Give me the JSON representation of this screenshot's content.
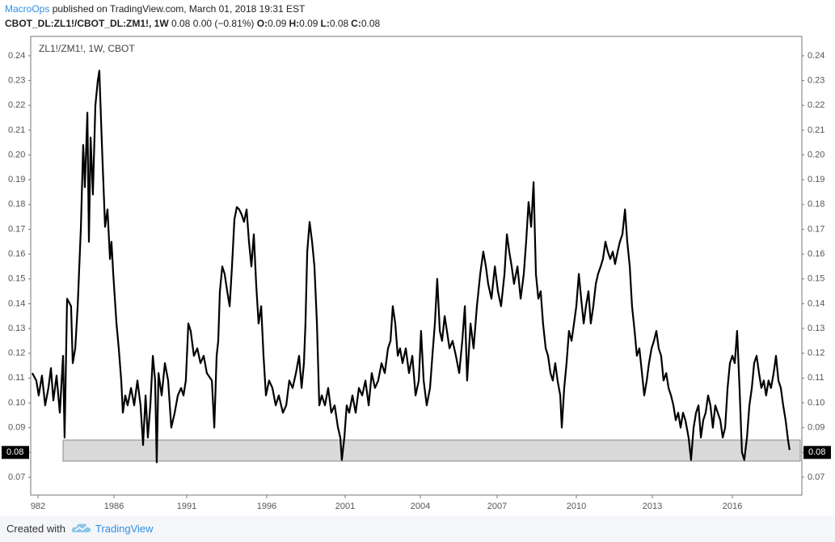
{
  "header": {
    "author": "MacroOps",
    "published": "published on TradingView.com, March 01, 2018 19:31 EST",
    "symbol": "CBOT_DL:ZL1!/CBOT_DL:ZM1!, 1W",
    "change": "0.08 0.00 (−0.81%)",
    "ohlc": [
      {
        "label": "O:",
        "value": 0.09
      },
      {
        "label": "H:",
        "value": 0.09
      },
      {
        "label": "L:",
        "value": 0.08
      },
      {
        "label": "C:",
        "value": 0.08
      }
    ]
  },
  "footer": {
    "created": "Created with",
    "brand": "TradingView"
  },
  "chart_data": {
    "type": "line",
    "legend_text": "ZL1!/ZM1!, 1W, CBOT",
    "grid": false,
    "price_label": 0.08,
    "zone": {
      "x": [
        1983.32,
        2018.55
      ],
      "y": [
        0.0765,
        0.085
      ],
      "color": "#d9d9d9"
    },
    "xlim": [
      1981.62,
      2018.61
    ],
    "xticks": [
      {
        "value": 1982,
        "label": "982"
      },
      1986,
      1991,
      1996,
      2001,
      2004,
      2007,
      2010,
      2013,
      2016
    ],
    "ylim": [
      0.0628,
      0.2478
    ],
    "yticks": [
      0.07,
      0.08,
      0.09,
      {
        "value": 0.1,
        "label": "0.10"
      },
      0.11,
      0.12,
      0.13,
      0.14,
      0.15,
      0.16,
      0.17,
      0.18,
      0.19,
      {
        "value": 0.2,
        "label": "0.20"
      },
      0.21,
      0.22,
      0.23,
      0.24
    ],
    "x": [
      1981.7,
      1981.91,
      1982.04,
      1982.21,
      1982.38,
      1982.55,
      1982.68,
      1982.81,
      1982.98,
      1983.15,
      1983.32,
      1983.4,
      1983.53,
      1983.74,
      1983.83,
      1983.96,
      1984.09,
      1984.26,
      1984.38,
      1984.47,
      1984.6,
      1984.68,
      1984.77,
      1984.89,
      1985.02,
      1985.15,
      1985.23,
      1985.32,
      1985.4,
      1985.53,
      1985.66,
      1985.79,
      1985.87,
      1985.96,
      1986.06,
      1986.17,
      1986.33,
      1986.5,
      1986.61,
      1986.78,
      1986.94,
      1987.17,
      1987.39,
      1987.61,
      1987.83,
      1988.0,
      1988.17,
      1988.33,
      1988.5,
      1988.67,
      1988.83,
      1988.94,
      1989.06,
      1989.28,
      1989.5,
      1989.72,
      1989.94,
      1990.17,
      1990.39,
      1990.61,
      1990.78,
      1990.94,
      1991.1,
      1991.25,
      1991.45,
      1991.66,
      1991.86,
      1992.06,
      1992.26,
      1992.57,
      1992.72,
      1992.87,
      1992.97,
      1993.07,
      1993.22,
      1993.37,
      1993.53,
      1993.68,
      1993.83,
      1993.98,
      1994.13,
      1994.28,
      1994.43,
      1994.58,
      1994.74,
      1994.89,
      1995.04,
      1995.19,
      1995.34,
      1995.49,
      1995.65,
      1995.8,
      1995.95,
      1996.15,
      1996.36,
      1996.57,
      1996.77,
      1997.03,
      1997.24,
      1997.44,
      1997.65,
      1997.86,
      1998.06,
      1998.22,
      1998.37,
      1998.47,
      1998.58,
      1998.73,
      1998.89,
      1999.04,
      1999.2,
      1999.35,
      1999.51,
      1999.71,
      1999.92,
      2000.12,
      2000.33,
      2000.54,
      2000.69,
      2000.79,
      2000.95,
      2001.06,
      2001.16,
      2001.29,
      2001.42,
      2001.55,
      2001.68,
      2001.81,
      2001.94,
      2002.06,
      2002.19,
      2002.32,
      2002.45,
      2002.58,
      2002.71,
      2002.81,
      2002.9,
      2003.0,
      2003.1,
      2003.19,
      2003.29,
      2003.42,
      2003.55,
      2003.68,
      2003.81,
      2003.94,
      2004.03,
      2004.13,
      2004.25,
      2004.38,
      2004.47,
      2004.57,
      2004.66,
      2004.76,
      2004.85,
      2004.95,
      2005.04,
      2005.14,
      2005.26,
      2005.39,
      2005.52,
      2005.64,
      2005.74,
      2005.83,
      2005.96,
      2006.08,
      2006.21,
      2006.34,
      2006.46,
      2006.56,
      2006.65,
      2006.78,
      2006.91,
      2007.03,
      2007.15,
      2007.28,
      2007.37,
      2007.46,
      2007.55,
      2007.64,
      2007.77,
      2007.89,
      2008.01,
      2008.1,
      2008.19,
      2008.29,
      2008.38,
      2008.47,
      2008.56,
      2008.65,
      2008.74,
      2008.84,
      2008.93,
      2009.02,
      2009.11,
      2009.2,
      2009.29,
      2009.39,
      2009.45,
      2009.54,
      2009.63,
      2009.72,
      2009.82,
      2009.91,
      2010.0,
      2010.1,
      2010.19,
      2010.29,
      2010.38,
      2010.48,
      2010.57,
      2010.67,
      2010.77,
      2010.86,
      2010.96,
      2011.05,
      2011.15,
      2011.24,
      2011.34,
      2011.44,
      2011.53,
      2011.63,
      2011.72,
      2011.82,
      2011.92,
      2012.01,
      2012.11,
      2012.2,
      2012.3,
      2012.39,
      2012.49,
      2012.59,
      2012.68,
      2012.78,
      2012.87,
      2012.97,
      2013.06,
      2013.15,
      2013.24,
      2013.33,
      2013.42,
      2013.52,
      2013.61,
      2013.7,
      2013.79,
      2013.88,
      2013.97,
      2014.06,
      2014.15,
      2014.24,
      2014.36,
      2014.45,
      2014.55,
      2014.64,
      2014.73,
      2014.82,
      2014.91,
      2015.0,
      2015.09,
      2015.18,
      2015.27,
      2015.36,
      2015.45,
      2015.55,
      2015.64,
      2015.73,
      2015.82,
      2015.91,
      2016.0,
      2016.09,
      2016.18,
      2016.27,
      2016.36,
      2016.45,
      2016.55,
      2016.64,
      2016.73,
      2016.82,
      2016.91,
      2017.0,
      2017.09,
      2017.18,
      2017.27,
      2017.36,
      2017.45,
      2017.55,
      2017.64,
      2017.73,
      2017.82,
      2017.91,
      2018.0,
      2018.09,
      2018.15
    ],
    "series": [
      {
        "name": "ZL1!/ZM1!",
        "color": "#000000",
        "values": [
          0.112,
          0.109,
          0.103,
          0.111,
          0.099,
          0.106,
          0.114,
          0.101,
          0.111,
          0.096,
          0.119,
          0.086,
          0.142,
          0.139,
          0.116,
          0.122,
          0.139,
          0.171,
          0.204,
          0.187,
          0.217,
          0.165,
          0.207,
          0.184,
          0.22,
          0.23,
          0.234,
          0.214,
          0.197,
          0.171,
          0.178,
          0.158,
          0.165,
          0.152,
          0.142,
          0.132,
          0.122,
          0.109,
          0.096,
          0.103,
          0.099,
          0.106,
          0.099,
          0.109,
          0.099,
          0.083,
          0.103,
          0.086,
          0.099,
          0.119,
          0.109,
          0.076,
          0.112,
          0.103,
          0.116,
          0.109,
          0.09,
          0.096,
          0.103,
          0.106,
          0.103,
          0.109,
          0.132,
          0.129,
          0.119,
          0.122,
          0.116,
          0.119,
          0.112,
          0.109,
          0.09,
          0.119,
          0.125,
          0.145,
          0.155,
          0.152,
          0.145,
          0.139,
          0.155,
          0.174,
          0.179,
          0.178,
          0.176,
          0.173,
          0.178,
          0.165,
          0.155,
          0.168,
          0.148,
          0.132,
          0.139,
          0.119,
          0.103,
          0.109,
          0.106,
          0.099,
          0.103,
          0.096,
          0.099,
          0.109,
          0.106,
          0.112,
          0.119,
          0.106,
          0.116,
          0.132,
          0.161,
          0.173,
          0.165,
          0.155,
          0.132,
          0.099,
          0.103,
          0.099,
          0.106,
          0.096,
          0.099,
          0.09,
          0.086,
          0.077,
          0.086,
          0.099,
          0.096,
          0.103,
          0.096,
          0.106,
          0.103,
          0.109,
          0.099,
          0.112,
          0.106,
          0.109,
          0.116,
          0.112,
          0.122,
          0.125,
          0.139,
          0.132,
          0.119,
          0.122,
          0.116,
          0.122,
          0.112,
          0.119,
          0.103,
          0.109,
          0.129,
          0.109,
          0.099,
          0.106,
          0.119,
          0.132,
          0.15,
          0.129,
          0.125,
          0.135,
          0.129,
          0.122,
          0.125,
          0.119,
          0.112,
          0.125,
          0.139,
          0.109,
          0.132,
          0.122,
          0.139,
          0.152,
          0.161,
          0.155,
          0.148,
          0.142,
          0.155,
          0.145,
          0.139,
          0.152,
          0.168,
          0.161,
          0.155,
          0.148,
          0.155,
          0.142,
          0.152,
          0.165,
          0.181,
          0.171,
          0.189,
          0.152,
          0.142,
          0.145,
          0.132,
          0.122,
          0.119,
          0.112,
          0.109,
          0.116,
          0.109,
          0.103,
          0.09,
          0.106,
          0.116,
          0.129,
          0.125,
          0.132,
          0.139,
          0.152,
          0.142,
          0.132,
          0.139,
          0.145,
          0.132,
          0.139,
          0.148,
          0.152,
          0.155,
          0.158,
          0.165,
          0.161,
          0.158,
          0.161,
          0.156,
          0.161,
          0.165,
          0.168,
          0.178,
          0.165,
          0.155,
          0.139,
          0.129,
          0.119,
          0.122,
          0.112,
          0.103,
          0.109,
          0.116,
          0.122,
          0.125,
          0.129,
          0.122,
          0.119,
          0.109,
          0.112,
          0.106,
          0.103,
          0.099,
          0.093,
          0.096,
          0.09,
          0.096,
          0.093,
          0.086,
          0.077,
          0.09,
          0.096,
          0.099,
          0.086,
          0.093,
          0.096,
          0.103,
          0.099,
          0.09,
          0.099,
          0.096,
          0.093,
          0.086,
          0.09,
          0.106,
          0.116,
          0.119,
          0.116,
          0.129,
          0.106,
          0.08,
          0.077,
          0.086,
          0.099,
          0.106,
          0.116,
          0.119,
          0.112,
          0.106,
          0.109,
          0.103,
          0.109,
          0.106,
          0.112,
          0.119,
          0.109,
          0.106,
          0.099,
          0.093,
          0.085,
          0.081
        ]
      }
    ]
  }
}
